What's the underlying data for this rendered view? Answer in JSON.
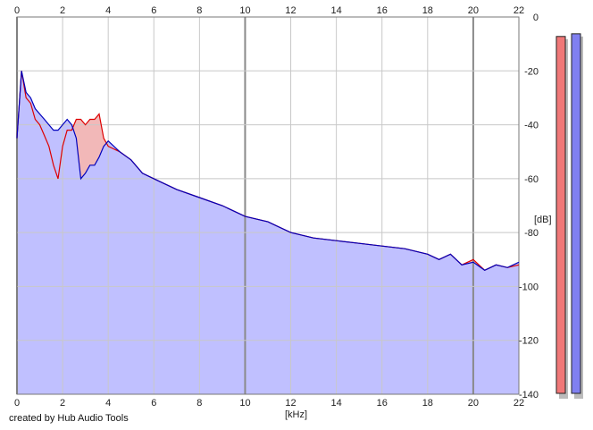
{
  "credit": "created by Hub Audio Tools",
  "chart_data": {
    "type": "area",
    "xlabel": "[kHz]",
    "ylabel": "[dB]",
    "xlim": [
      0,
      22
    ],
    "ylim": [
      -140,
      0
    ],
    "x_ticks": [
      0,
      2,
      4,
      6,
      8,
      10,
      12,
      14,
      16,
      18,
      20,
      22
    ],
    "y_ticks": [
      0,
      -20,
      -40,
      -60,
      -80,
      -100,
      -120,
      -140
    ],
    "grid": true,
    "colors": {
      "red_line": "#dd0000",
      "red_fill": "#f2b8b8",
      "blue_line": "#0000bb",
      "blue_fill": "#c0c0ff"
    },
    "series": [
      {
        "color": "red",
        "x": [
          0.0,
          0.2,
          0.4,
          0.6,
          0.8,
          1.0,
          1.2,
          1.4,
          1.6,
          1.8,
          2.0,
          2.2,
          2.4,
          2.6,
          2.8,
          3.0,
          3.2,
          3.4,
          3.6,
          3.8,
          4.0,
          4.5,
          5.0,
          5.5,
          6.0,
          7.0,
          8.0,
          9.0,
          10.0,
          11.0,
          12.0,
          13.0,
          14.0,
          15.0,
          16.0,
          17.0,
          18.0,
          18.5,
          19.0,
          19.5,
          20.0,
          20.5,
          21.0,
          21.5,
          22.0
        ],
        "y": [
          -45,
          -20,
          -30,
          -32,
          -38,
          -40,
          -44,
          -48,
          -55,
          -60,
          -48,
          -42,
          -42,
          -38,
          -38,
          -40,
          -38,
          -38,
          -36,
          -45,
          -48,
          -50,
          -53,
          -58,
          -60,
          -64,
          -67,
          -70,
          -74,
          -76,
          -80,
          -82,
          -83,
          -84,
          -85,
          -86,
          -88,
          -90,
          -88,
          -92,
          -90,
          -94,
          -92,
          -93,
          -92
        ]
      },
      {
        "color": "blue",
        "x": [
          0.0,
          0.2,
          0.4,
          0.6,
          0.8,
          1.0,
          1.2,
          1.4,
          1.6,
          1.8,
          2.0,
          2.2,
          2.4,
          2.6,
          2.8,
          3.0,
          3.2,
          3.4,
          3.6,
          3.8,
          4.0,
          4.5,
          5.0,
          5.5,
          6.0,
          7.0,
          8.0,
          9.0,
          10.0,
          11.0,
          12.0,
          13.0,
          14.0,
          15.0,
          16.0,
          17.0,
          18.0,
          18.5,
          19.0,
          19.5,
          20.0,
          20.5,
          21.0,
          21.5,
          22.0
        ],
        "y": [
          -45,
          -20,
          -28,
          -30,
          -34,
          -36,
          -38,
          -40,
          -42,
          -42,
          -40,
          -38,
          -40,
          -45,
          -60,
          -58,
          -55,
          -55,
          -52,
          -48,
          -46,
          -50,
          -53,
          -58,
          -60,
          -64,
          -67,
          -70,
          -74,
          -76,
          -80,
          -82,
          -83,
          -84,
          -85,
          -86,
          -88,
          -90,
          -88,
          -92,
          -91,
          -94,
          -92,
          -93,
          -91
        ]
      }
    ],
    "meters": [
      {
        "color": "red",
        "value_db": -5
      },
      {
        "color": "blue",
        "value_db": -4
      }
    ]
  }
}
